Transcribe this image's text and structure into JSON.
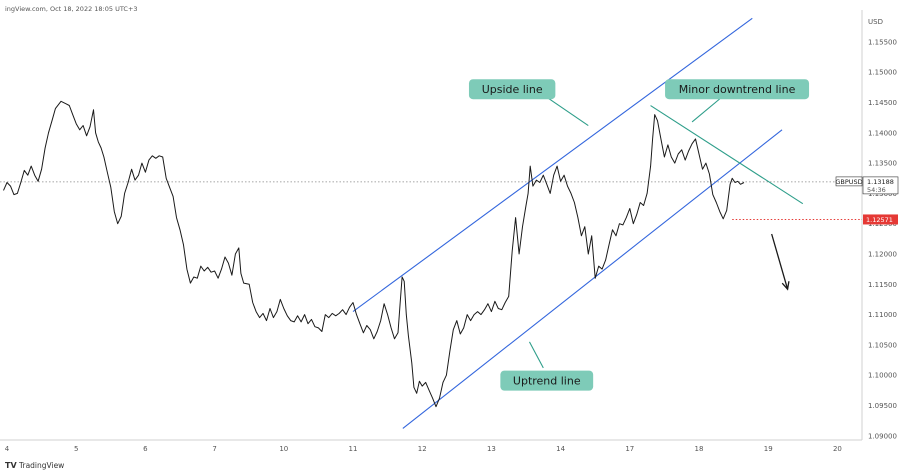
{
  "header": {
    "source_text": "ingView.com, Oct 18, 2022 18:05 UTC+3"
  },
  "footer": {
    "logo_text": "TradingView"
  },
  "chart_data": {
    "type": "line",
    "title": "",
    "currency": "USD",
    "x_ticks": [
      "4",
      "5",
      "6",
      "7",
      "10",
      "11",
      "12",
      "13",
      "14",
      "17",
      "18",
      "19",
      "20"
    ],
    "y_ticks": [
      "1.15500",
      "1.15000",
      "1.14500",
      "1.14000",
      "1.13500",
      "1.13000",
      "1.12500",
      "1.12000",
      "1.11500",
      "1.11000",
      "1.10500",
      "1.10000",
      "1.09500",
      "1.09000"
    ],
    "ylim": [
      1.0893,
      1.1606
    ],
    "grid": false,
    "series": [
      {
        "name": "GBPUSD",
        "color": "#1a1a1a",
        "points": [
          [
            -0.05,
            1.1305
          ],
          [
            0.0,
            1.1318
          ],
          [
            0.05,
            1.1312
          ],
          [
            0.1,
            1.1298
          ],
          [
            0.15,
            1.13
          ],
          [
            0.2,
            1.1318
          ],
          [
            0.25,
            1.1338
          ],
          [
            0.3,
            1.133
          ],
          [
            0.35,
            1.1345
          ],
          [
            0.4,
            1.133
          ],
          [
            0.45,
            1.132
          ],
          [
            0.5,
            1.134
          ],
          [
            0.55,
            1.1375
          ],
          [
            0.6,
            1.14
          ],
          [
            0.65,
            1.142
          ],
          [
            0.7,
            1.144
          ],
          [
            0.78,
            1.1452
          ],
          [
            0.85,
            1.1448
          ],
          [
            0.9,
            1.1445
          ],
          [
            0.95,
            1.143
          ],
          [
            1.0,
            1.1415
          ],
          [
            1.05,
            1.1405
          ],
          [
            1.1,
            1.1412
          ],
          [
            1.15,
            1.1395
          ],
          [
            1.2,
            1.141
          ],
          [
            1.25,
            1.1438
          ],
          [
            1.28,
            1.14
          ],
          [
            1.32,
            1.1385
          ],
          [
            1.36,
            1.1375
          ],
          [
            1.4,
            1.136
          ],
          [
            1.45,
            1.1335
          ],
          [
            1.5,
            1.131
          ],
          [
            1.55,
            1.127
          ],
          [
            1.6,
            1.125
          ],
          [
            1.65,
            1.1262
          ],
          [
            1.7,
            1.13
          ],
          [
            1.75,
            1.1318
          ],
          [
            1.8,
            1.134
          ],
          [
            1.85,
            1.1322
          ],
          [
            1.9,
            1.133
          ],
          [
            1.95,
            1.135
          ],
          [
            2.0,
            1.1335
          ],
          [
            2.05,
            1.1355
          ],
          [
            2.1,
            1.1362
          ],
          [
            2.15,
            1.1358
          ],
          [
            2.2,
            1.1362
          ],
          [
            2.25,
            1.136
          ],
          [
            2.3,
            1.1325
          ],
          [
            2.35,
            1.131
          ],
          [
            2.4,
            1.1295
          ],
          [
            2.45,
            1.126
          ],
          [
            2.5,
            1.124
          ],
          [
            2.55,
            1.1215
          ],
          [
            2.6,
            1.1175
          ],
          [
            2.65,
            1.1152
          ],
          [
            2.7,
            1.1162
          ],
          [
            2.75,
            1.116
          ],
          [
            2.8,
            1.118
          ],
          [
            2.85,
            1.1172
          ],
          [
            2.9,
            1.1178
          ],
          [
            2.95,
            1.117
          ],
          [
            3.0,
            1.1172
          ],
          [
            3.05,
            1.116
          ],
          [
            3.1,
            1.1175
          ],
          [
            3.15,
            1.1195
          ],
          [
            3.2,
            1.1185
          ],
          [
            3.25,
            1.1165
          ],
          [
            3.3,
            1.12
          ],
          [
            3.35,
            1.121
          ],
          [
            3.38,
            1.1168
          ],
          [
            3.42,
            1.1152
          ],
          [
            3.5,
            1.115
          ],
          [
            3.55,
            1.112
          ],
          [
            3.6,
            1.1105
          ],
          [
            3.65,
            1.1095
          ],
          [
            3.7,
            1.1102
          ],
          [
            3.75,
            1.109
          ],
          [
            3.8,
            1.111
          ],
          [
            3.85,
            1.1095
          ],
          [
            3.9,
            1.1105
          ],
          [
            3.95,
            1.1125
          ],
          [
            4.0,
            1.111
          ],
          [
            4.05,
            1.1098
          ],
          [
            4.1,
            1.109
          ],
          [
            4.15,
            1.1088
          ],
          [
            4.2,
            1.1098
          ],
          [
            4.25,
            1.1088
          ],
          [
            4.3,
            1.11
          ],
          [
            4.35,
            1.1085
          ],
          [
            4.4,
            1.1092
          ],
          [
            4.45,
            1.108
          ],
          [
            4.5,
            1.1078
          ],
          [
            4.55,
            1.1072
          ],
          [
            4.6,
            1.11
          ],
          [
            4.65,
            1.1095
          ],
          [
            4.7,
            1.1102
          ],
          [
            4.75,
            1.1098
          ],
          [
            4.8,
            1.1102
          ],
          [
            4.85,
            1.1108
          ],
          [
            4.9,
            1.11
          ],
          [
            4.95,
            1.1112
          ],
          [
            5.0,
            1.112
          ],
          [
            5.05,
            1.11
          ],
          [
            5.1,
            1.1085
          ],
          [
            5.15,
            1.107
          ],
          [
            5.2,
            1.1082
          ],
          [
            5.25,
            1.1075
          ],
          [
            5.3,
            1.106
          ],
          [
            5.35,
            1.1072
          ],
          [
            5.4,
            1.109
          ],
          [
            5.45,
            1.1118
          ],
          [
            5.5,
            1.11
          ],
          [
            5.55,
            1.1078
          ],
          [
            5.6,
            1.106
          ],
          [
            5.65,
            1.107
          ],
          [
            5.68,
            1.1118
          ],
          [
            5.71,
            1.1162
          ],
          [
            5.74,
            1.1155
          ],
          [
            5.77,
            1.11
          ],
          [
            5.8,
            1.1065
          ],
          [
            5.85,
            1.102
          ],
          [
            5.88,
            1.098
          ],
          [
            5.92,
            1.097
          ],
          [
            5.96,
            1.099
          ],
          [
            6.0,
            1.0982
          ],
          [
            6.05,
            1.0988
          ],
          [
            6.1,
            1.0975
          ],
          [
            6.15,
            1.0962
          ],
          [
            6.2,
            1.0948
          ],
          [
            6.25,
            1.0962
          ],
          [
            6.3,
            1.0988
          ],
          [
            6.35,
            1.1
          ],
          [
            6.4,
            1.104
          ],
          [
            6.45,
            1.1075
          ],
          [
            6.5,
            1.109
          ],
          [
            6.55,
            1.1068
          ],
          [
            6.6,
            1.1078
          ],
          [
            6.65,
            1.11
          ],
          [
            6.7,
            1.109
          ],
          [
            6.75,
            1.11
          ],
          [
            6.8,
            1.1105
          ],
          [
            6.85,
            1.11
          ],
          [
            6.9,
            1.1108
          ],
          [
            6.95,
            1.1118
          ],
          [
            7.0,
            1.1105
          ],
          [
            7.05,
            1.1122
          ],
          [
            7.1,
            1.111
          ],
          [
            7.15,
            1.1108
          ],
          [
            7.2,
            1.112
          ],
          [
            7.25,
            1.113
          ],
          [
            7.3,
            1.1205
          ],
          [
            7.35,
            1.126
          ],
          [
            7.4,
            1.12
          ],
          [
            7.45,
            1.1245
          ],
          [
            7.5,
            1.128
          ],
          [
            7.53,
            1.13
          ],
          [
            7.56,
            1.1345
          ],
          [
            7.6,
            1.1312
          ],
          [
            7.65,
            1.1322
          ],
          [
            7.7,
            1.1318
          ],
          [
            7.75,
            1.133
          ],
          [
            7.8,
            1.1315
          ],
          [
            7.85,
            1.13
          ],
          [
            7.9,
            1.133
          ],
          [
            7.95,
            1.1345
          ],
          [
            8.0,
            1.132
          ],
          [
            8.05,
            1.133
          ],
          [
            8.1,
            1.1312
          ],
          [
            8.15,
            1.13
          ],
          [
            8.2,
            1.1285
          ],
          [
            8.25,
            1.126
          ],
          [
            8.3,
            1.123
          ],
          [
            8.35,
            1.1245
          ],
          [
            8.4,
            1.12
          ],
          [
            8.45,
            1.123
          ],
          [
            8.5,
            1.116
          ],
          [
            8.55,
            1.118
          ],
          [
            8.6,
            1.1175
          ],
          [
            8.65,
            1.119
          ],
          [
            8.7,
            1.1215
          ],
          [
            8.75,
            1.124
          ],
          [
            8.8,
            1.123
          ],
          [
            8.85,
            1.125
          ],
          [
            8.9,
            1.1248
          ],
          [
            8.95,
            1.126
          ],
          [
            9.0,
            1.1275
          ],
          [
            9.05,
            1.125
          ],
          [
            9.1,
            1.1265
          ],
          [
            9.15,
            1.1285
          ],
          [
            9.2,
            1.128
          ],
          [
            9.25,
            1.13
          ],
          [
            9.3,
            1.1345
          ],
          [
            9.33,
            1.139
          ],
          [
            9.36,
            1.143
          ],
          [
            9.4,
            1.142
          ],
          [
            9.45,
            1.139
          ],
          [
            9.5,
            1.136
          ],
          [
            9.55,
            1.138
          ],
          [
            9.6,
            1.136
          ],
          [
            9.65,
            1.135
          ],
          [
            9.7,
            1.1365
          ],
          [
            9.75,
            1.1372
          ],
          [
            9.8,
            1.1355
          ],
          [
            9.85,
            1.137
          ],
          [
            9.9,
            1.1382
          ],
          [
            9.95,
            1.139
          ],
          [
            10.0,
            1.1365
          ],
          [
            10.05,
            1.134
          ],
          [
            10.1,
            1.135
          ],
          [
            10.15,
            1.1332
          ],
          [
            10.2,
            1.1298
          ],
          [
            10.25,
            1.1285
          ],
          [
            10.3,
            1.127
          ],
          [
            10.35,
            1.1258
          ],
          [
            10.4,
            1.1272
          ],
          [
            10.45,
            1.1315
          ],
          [
            10.48,
            1.1325
          ],
          [
            10.52,
            1.1318
          ],
          [
            10.56,
            1.132
          ],
          [
            10.6,
            1.1315
          ],
          [
            10.65,
            1.1318
          ]
        ]
      }
    ],
    "current_price": {
      "label": "GBPUSD",
      "value": "1.13188",
      "countdown": "54:36",
      "y": 1.1319
    },
    "marked_level": {
      "value": "1.12571",
      "y": 1.1257
    },
    "trendlines": [
      {
        "name": "Upside line",
        "color": "#3366dd",
        "x1": 5.0,
        "y1": 1.1105,
        "x2": 10.77,
        "y2": 1.1589
      },
      {
        "name": "Uptrend line",
        "color": "#3366dd",
        "x1": 5.72,
        "y1": 1.0912,
        "x2": 11.2,
        "y2": 1.1405
      },
      {
        "name": "Minor downtrend line",
        "color": "#2e9e8a",
        "x1": 9.3,
        "y1": 1.1445,
        "x2": 11.5,
        "y2": 1.1283
      }
    ],
    "annotations": [
      {
        "text": "Upside line",
        "x": 7.3,
        "y": 1.1472
      },
      {
        "text": "Minor downtrend line",
        "x": 10.55,
        "y": 1.1472
      },
      {
        "text": "Uptrend line",
        "x": 7.8,
        "y": 1.0991
      }
    ],
    "arrow": {
      "x1": 11.05,
      "y1": 1.1233,
      "x2": 11.28,
      "y2": 1.1142
    }
  }
}
